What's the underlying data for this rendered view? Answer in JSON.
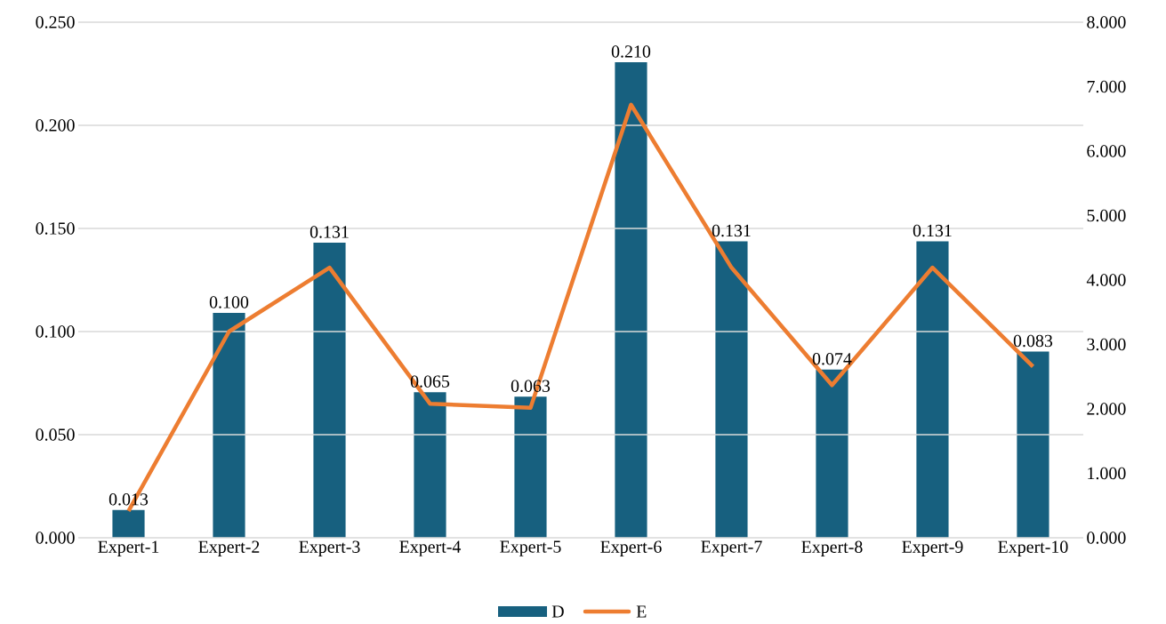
{
  "chart_data": {
    "type": "bar",
    "categories": [
      "Expert-1",
      "Expert-2",
      "Expert-3",
      "Expert-4",
      "Expert-5",
      "Expert-6",
      "Expert-7",
      "Expert-8",
      "Expert-9",
      "Expert-10"
    ],
    "series": [
      {
        "name": "D",
        "axis": "y2",
        "color": "#17607f",
        "values": [
          0.43,
          3.49,
          4.58,
          2.26,
          2.19,
          7.38,
          4.6,
          2.61,
          4.6,
          2.89
        ]
      },
      {
        "name": "E",
        "type": "line",
        "color": "#ed7d31",
        "values": [
          0.013,
          0.1,
          0.131,
          0.065,
          0.063,
          0.21,
          0.131,
          0.074,
          0.131,
          0.083
        ],
        "value_labels": [
          "0.013",
          "0.100",
          "0.131",
          "0.065",
          "0.063",
          "0.210",
          "0.131",
          "0.074",
          "0.131",
          "0.083"
        ]
      }
    ],
    "ylim": [
      0,
      0.25
    ],
    "yticks": [
      {
        "value": 0,
        "label": "0.000"
      },
      {
        "value": 0.05,
        "label": "0.050"
      },
      {
        "value": 0.1,
        "label": "0.100"
      },
      {
        "value": 0.15,
        "label": "0.150"
      },
      {
        "value": 0.2,
        "label": "0.200"
      },
      {
        "value": 0.25,
        "label": "0.250"
      }
    ],
    "y2lim": [
      0,
      8
    ],
    "y2ticks": [
      {
        "value": 0,
        "label": "0.000"
      },
      {
        "value": 1,
        "label": "1.000"
      },
      {
        "value": 2,
        "label": "2.000"
      },
      {
        "value": 3,
        "label": "3.000"
      },
      {
        "value": 4,
        "label": "4.000"
      },
      {
        "value": 5,
        "label": "5.000"
      },
      {
        "value": 6,
        "label": "6.000"
      },
      {
        "value": 7,
        "label": "7.000"
      },
      {
        "value": 8,
        "label": "8.000"
      }
    ],
    "grid": "y",
    "legend": "bottom",
    "marker": "none",
    "line_style": "solid"
  }
}
